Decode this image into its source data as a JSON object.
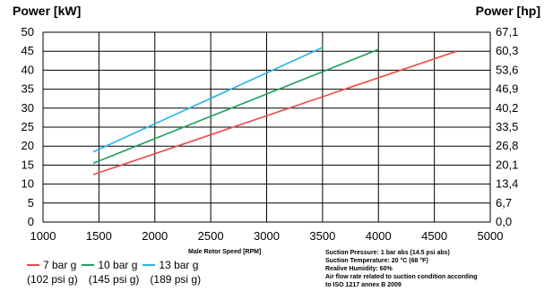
{
  "chart_data": {
    "type": "line",
    "ylabel_left": "Power [kW]",
    "ylabel_right": "Power [hp]",
    "xlabel": "Male Rotor Speed [RPM]",
    "xlim": [
      1000,
      5000
    ],
    "ylim": [
      0,
      50
    ],
    "x_ticks": [
      "1000",
      "1500",
      "2000",
      "2500",
      "3000",
      "3500",
      "4000",
      "4500",
      "5000"
    ],
    "y_ticks_left": [
      "0",
      "5",
      "10",
      "15",
      "20",
      "25",
      "30",
      "35",
      "40",
      "45",
      "50"
    ],
    "y_ticks_right": [
      "0,0",
      "6,7",
      "13,4",
      "20,1",
      "26,8",
      "33,5",
      "40,2",
      "46,9",
      "53,6",
      "60,3",
      "67,1"
    ],
    "grid": true,
    "series": [
      {
        "name": "7 bar g",
        "sub": "(102 psi g)",
        "color": "#ef4a43",
        "x": [
          1450,
          4700
        ],
        "y": [
          12.5,
          45
        ]
      },
      {
        "name": "10 bar g",
        "sub": "(145 psi g)",
        "color": "#1fa05a",
        "x": [
          1450,
          4000
        ],
        "y": [
          15.5,
          45.5
        ]
      },
      {
        "name": "13 bar g",
        "sub": "(189 psi g)",
        "color": "#27b4e4",
        "x": [
          1450,
          3500
        ],
        "y": [
          18.5,
          46
        ]
      }
    ],
    "notes": [
      "Suction Pressure:   1 bar abs (14.5 psi abs)",
      "Suction Temperature:  20 °C (68 °F)",
      "Realive Humidity:   60%",
      "Air flow rate related to suction condition according",
      "to ISO 1217 annex B 2009"
    ]
  }
}
